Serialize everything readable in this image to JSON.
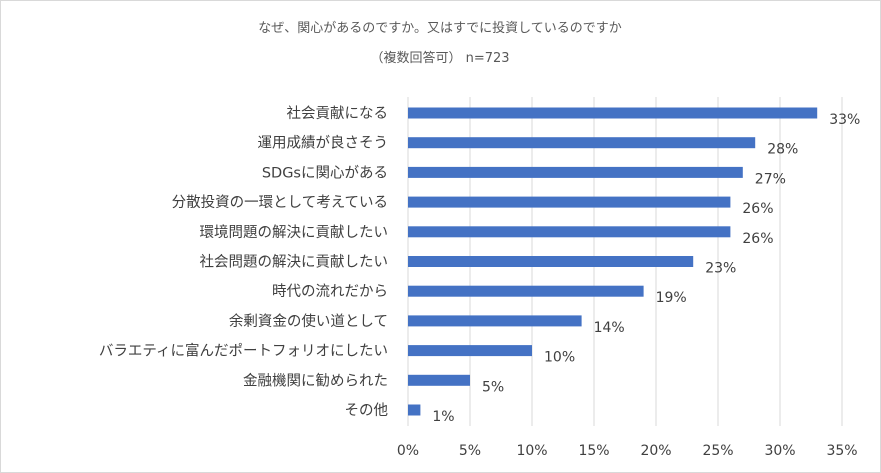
{
  "chart_data": {
    "type": "bar",
    "orientation": "horizontal",
    "title": "なぜ、関心があるのですか。又はすでに投資しているのですか",
    "subtitle": "（複数回答可） n=723",
    "categories": [
      "社会貢献になる",
      "運用成績が良さそう",
      "SDGsに関心がある",
      "分散投資の一環として考えている",
      "環境問題の解決に貢献したい",
      "社会問題の解決に貢献したい",
      "時代の流れだから",
      "余剰資金の使い道として",
      "バラエティに富んだポートフォリオにしたい",
      "金融機関に勧められた",
      "その他"
    ],
    "values": [
      33,
      28,
      27,
      26,
      26,
      23,
      19,
      14,
      10,
      5,
      1
    ],
    "value_labels": [
      "33%",
      "28%",
      "27%",
      "26%",
      "26%",
      "23%",
      "19%",
      "14%",
      "10%",
      "5%",
      "1%"
    ],
    "x_ticks": [
      "0%",
      "5%",
      "10%",
      "15%",
      "20%",
      "25%",
      "30%",
      "35%"
    ],
    "xlim": [
      0,
      35
    ],
    "grid": true,
    "legend": "none",
    "bar_color": "#4472c4"
  }
}
